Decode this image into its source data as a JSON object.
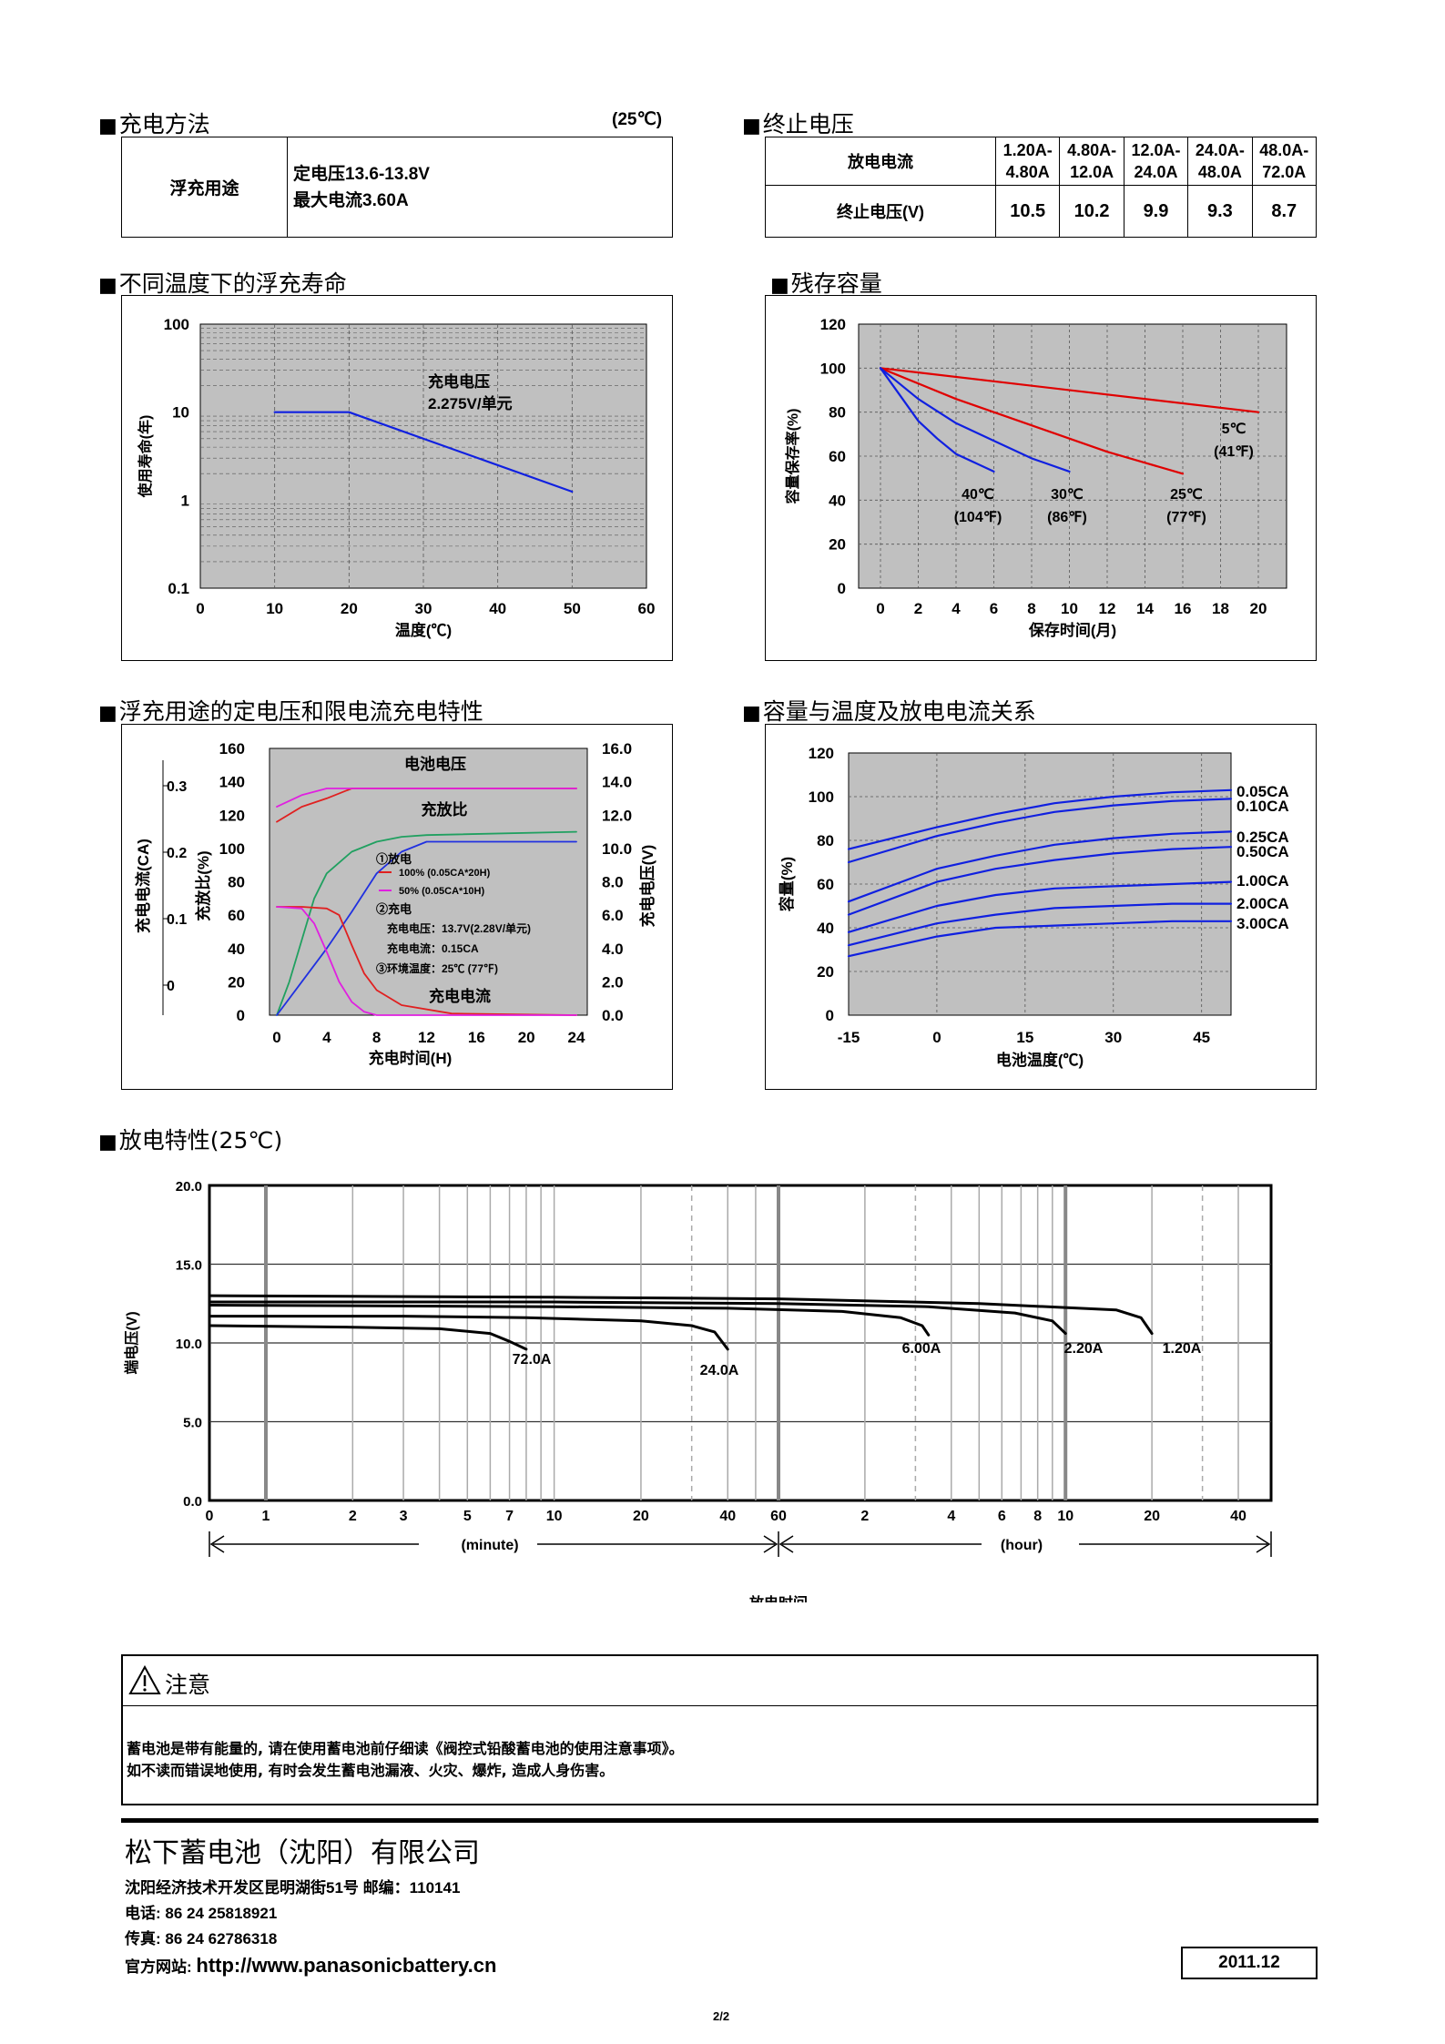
{
  "sections": {
    "charge_method": "充电方法",
    "charge_method_temp": "(25℃)",
    "end_voltage": "终止电压",
    "float_life": "不同温度下的浮充寿命",
    "residual_capacity": "残存容量",
    "float_charge": "浮充用途的定电压和限电流充电特性",
    "capacity_temp": "容量与温度及放电电流关系",
    "discharge": "放电特性(25℃)"
  },
  "charge_table": {
    "use": "浮充用途",
    "line1": "定电压13.6-13.8V",
    "line2": "最大电流3.60A"
  },
  "end_voltage_table": {
    "header_current": "放电电流",
    "header_voltage": "终止电压(V)",
    "ranges": [
      [
        "1.20A-",
        "4.80A"
      ],
      [
        "4.80A-",
        "12.0A"
      ],
      [
        "12.0A-",
        "24.0A"
      ],
      [
        "24.0A-",
        "48.0A"
      ],
      [
        "48.0A-",
        "72.0A"
      ]
    ],
    "voltages": [
      "10.5",
      "10.2",
      "9.9",
      "9.3",
      "8.7"
    ]
  },
  "chart_data": [
    {
      "type": "line",
      "id": "float-life",
      "xlabel": "温度(℃)",
      "ylabel": "使用寿命(年)",
      "x_ticks": [
        "0",
        "10",
        "20",
        "30",
        "40",
        "50",
        "60"
      ],
      "y_ticks": [
        "100",
        "10",
        "1",
        "0.1"
      ],
      "ylog": true,
      "xlim": [
        0,
        60
      ],
      "ylim": [
        0.1,
        100
      ],
      "annotation": [
        "充电电压",
        "2.275V/单元"
      ],
      "series": [
        {
          "x": [
            10,
            20,
            50
          ],
          "y": [
            10,
            10,
            1.25
          ]
        }
      ]
    },
    {
      "type": "line",
      "id": "residual",
      "xlabel": "保存时间(月)",
      "ylabel": "容量保存率(%)",
      "x_ticks": [
        "0",
        "2",
        "4",
        "6",
        "8",
        "10",
        "12",
        "14",
        "16",
        "18",
        "20"
      ],
      "y_ticks": [
        "120",
        "100",
        "80",
        "60",
        "40",
        "20",
        "0"
      ],
      "xlim": [
        0,
        20
      ],
      "ylim": [
        0,
        120
      ],
      "series": [
        {
          "name": "5℃",
          "name2": "(41℉)",
          "color": "#e00000",
          "x": [
            0,
            20
          ],
          "y": [
            100,
            80
          ]
        },
        {
          "name": "25℃",
          "name2": "(77℉)",
          "color": "#e00000",
          "x": [
            0,
            4,
            8,
            12,
            16
          ],
          "y": [
            100,
            86,
            74,
            62,
            52
          ]
        },
        {
          "name": "30℃",
          "name2": "(86℉)",
          "color": "#1020e0",
          "x": [
            0,
            2,
            4,
            6,
            8,
            10
          ],
          "y": [
            100,
            86,
            75,
            67,
            59,
            53
          ]
        },
        {
          "name": "40℃",
          "name2": "(104℉)",
          "color": "#1020e0",
          "x": [
            0,
            1,
            2,
            3,
            4,
            5,
            6
          ],
          "y": [
            100,
            88,
            76,
            68,
            61,
            57,
            53
          ]
        }
      ]
    },
    {
      "type": "line",
      "id": "float-charge",
      "xlabel": "充电时间(H)",
      "ylabel_left_outer": "充电电流(CA)",
      "ylabel_left_inner": "充放比(%)",
      "ylabel_right": "充电电压(V)",
      "x_ticks": [
        "0",
        "4",
        "8",
        "12",
        "16",
        "20",
        "24"
      ],
      "y_ticks_left": [
        "160",
        "140",
        "120",
        "100",
        "80",
        "60",
        "40",
        "20",
        "0"
      ],
      "y_ticks_right": [
        "16.0",
        "14.0",
        "12.0",
        "10.0",
        "8.0",
        "6.0",
        "4.0",
        "2.0",
        "0.0"
      ],
      "ca_ticks": [
        "0.3",
        "0.2",
        "0.1",
        "0"
      ],
      "xlim": [
        0,
        24
      ],
      "ylim": [
        0,
        160
      ],
      "labels": {
        "voltage": "电池电压",
        "ratio": "充放比",
        "current": "充电电流",
        "l1": "①放电",
        "l2": "100% (0.05CA*20H)",
        "l3": "50% (0.05CA*10H)",
        "l4": "②充电",
        "l5": "充电电压：13.7V(2.28V/单元)",
        "l6": "充电电流：0.15CA",
        "l7": "③环境温度：25℃ (77℉)"
      },
      "series": [
        {
          "name": "red-top",
          "color": "#e02020",
          "x": [
            0,
            2,
            4,
            6,
            24
          ],
          "y": [
            116,
            125,
            130,
            136,
            136
          ]
        },
        {
          "name": "magenta-top",
          "color": "#e020e0",
          "x": [
            0,
            2,
            4,
            24
          ],
          "y": [
            125,
            132,
            136,
            136
          ]
        },
        {
          "name": "green",
          "color": "#20a060",
          "x": [
            0,
            1,
            2,
            3,
            4,
            6,
            8,
            10,
            12,
            24
          ],
          "y": [
            0,
            20,
            45,
            70,
            85,
            98,
            104,
            107,
            108,
            110
          ]
        },
        {
          "name": "blue",
          "color": "#2030e0",
          "x": [
            0,
            2,
            4,
            6,
            8,
            10,
            12,
            24
          ],
          "y": [
            0,
            20,
            40,
            62,
            85,
            98,
            104,
            104
          ]
        },
        {
          "name": "red-low",
          "color": "#e02020",
          "x": [
            0,
            2,
            4,
            5,
            6,
            7,
            8,
            10,
            14,
            24
          ],
          "y": [
            65,
            65,
            64,
            60,
            42,
            25,
            15,
            6,
            1,
            0
          ]
        },
        {
          "name": "magenta-low",
          "color": "#e020e0",
          "x": [
            0,
            2,
            3,
            4,
            5,
            6,
            7,
            8,
            24
          ],
          "y": [
            65,
            64,
            55,
            38,
            20,
            8,
            2,
            0,
            0
          ]
        }
      ]
    },
    {
      "type": "line",
      "id": "capacity-temp",
      "xlabel": "电池温度(℃)",
      "ylabel": "容量(%)",
      "x_ticks": [
        "-15",
        "0",
        "15",
        "30",
        "45"
      ],
      "y_ticks": [
        "120",
        "100",
        "80",
        "60",
        "40",
        "20",
        "0"
      ],
      "xlim": [
        -15,
        50
      ],
      "ylim": [
        0,
        120
      ],
      "series": [
        {
          "name": "0.05CA",
          "x": [
            -15,
            0,
            10,
            20,
            30,
            40,
            50
          ],
          "y": [
            76,
            86,
            92,
            97,
            100,
            102,
            103
          ]
        },
        {
          "name": "0.10CA",
          "x": [
            -15,
            0,
            10,
            20,
            30,
            40,
            50
          ],
          "y": [
            70,
            82,
            88,
            93,
            96,
            98,
            99
          ]
        },
        {
          "name": "0.25CA",
          "x": [
            -15,
            0,
            10,
            20,
            30,
            40,
            50
          ],
          "y": [
            52,
            67,
            73,
            78,
            81,
            83,
            84
          ]
        },
        {
          "name": "0.50CA",
          "x": [
            -15,
            0,
            10,
            20,
            30,
            40,
            50
          ],
          "y": [
            46,
            61,
            67,
            71,
            74,
            76,
            77
          ]
        },
        {
          "name": "1.00CA",
          "x": [
            -15,
            0,
            10,
            20,
            30,
            40,
            50
          ],
          "y": [
            38,
            50,
            55,
            58,
            59,
            60,
            61
          ]
        },
        {
          "name": "2.00CA",
          "x": [
            -15,
            0,
            10,
            20,
            30,
            40,
            50
          ],
          "y": [
            32,
            42,
            46,
            49,
            50,
            51,
            51
          ]
        },
        {
          "name": "3.00CA",
          "x": [
            -15,
            0,
            10,
            20,
            30,
            40,
            50
          ],
          "y": [
            27,
            36,
            40,
            41,
            42,
            43,
            43
          ]
        }
      ]
    },
    {
      "type": "line",
      "id": "discharge",
      "xlabel": "放电时间",
      "ylabel": "端电压(V)",
      "y_ticks": [
        "20.0",
        "15.0",
        "10.0",
        "5.0",
        "0.0"
      ],
      "ylim": [
        0,
        20
      ],
      "x_ticks_minute": [
        "0",
        "1",
        "2",
        "3",
        "5",
        "7",
        "10",
        "20",
        "40",
        "60"
      ],
      "x_ticks_hour": [
        "2",
        "4",
        "6",
        "8",
        "10",
        "20",
        "40"
      ],
      "unit_minute": "(minute)",
      "unit_hour": "(hour)",
      "series": [
        {
          "name": "72.0A",
          "x_min": [
            0.1,
            2,
            4,
            6,
            7,
            8
          ],
          "y": [
            11.1,
            11.0,
            10.9,
            10.6,
            10.1,
            9.6
          ]
        },
        {
          "name": "24.0A",
          "x_min": [
            0.1,
            3,
            8,
            20,
            30,
            36,
            40
          ],
          "y": [
            11.7,
            11.7,
            11.6,
            11.4,
            11.1,
            10.7,
            9.6
          ]
        },
        {
          "name": "6.00A",
          "x_min": [
            0.1,
            10,
            40,
            100,
            160,
            190,
            200
          ],
          "y": [
            12.4,
            12.3,
            12.2,
            12.0,
            11.6,
            11.1,
            10.5
          ]
        },
        {
          "name": "2.20A",
          "x_min": [
            0.1,
            10,
            60,
            200,
            400,
            540,
            600
          ],
          "y": [
            12.6,
            12.6,
            12.5,
            12.3,
            11.9,
            11.4,
            10.6
          ]
        },
        {
          "name": "1.20A",
          "x_min": [
            0.1,
            10,
            60,
            300,
            900,
            1100,
            1200
          ],
          "y": [
            13.0,
            12.9,
            12.8,
            12.5,
            12.1,
            11.6,
            10.6
          ]
        }
      ]
    }
  ],
  "notice": {
    "title": "注意",
    "line1": "蓄电池是带有能量的, 请在使用蓄电池前仔细读《阀控式铅酸蓄电池的使用注意事项》。",
    "line2": "如不读而错误地使用, 有时会发生蓄电池漏液、火灾、爆炸, 造成人身伤害。"
  },
  "footer": {
    "company": "松下蓄电池（沈阳）有限公司",
    "address": "沈阳经济技术开发区昆明湖街51号  邮编：110141",
    "tel": "电话: 86 24 25818921",
    "fax": "传真: 86 24 62786318",
    "web_label": "官方网站: ",
    "web_url": "http://www.panasonicbattery.cn",
    "date": "2011.12",
    "page": "2/2"
  }
}
